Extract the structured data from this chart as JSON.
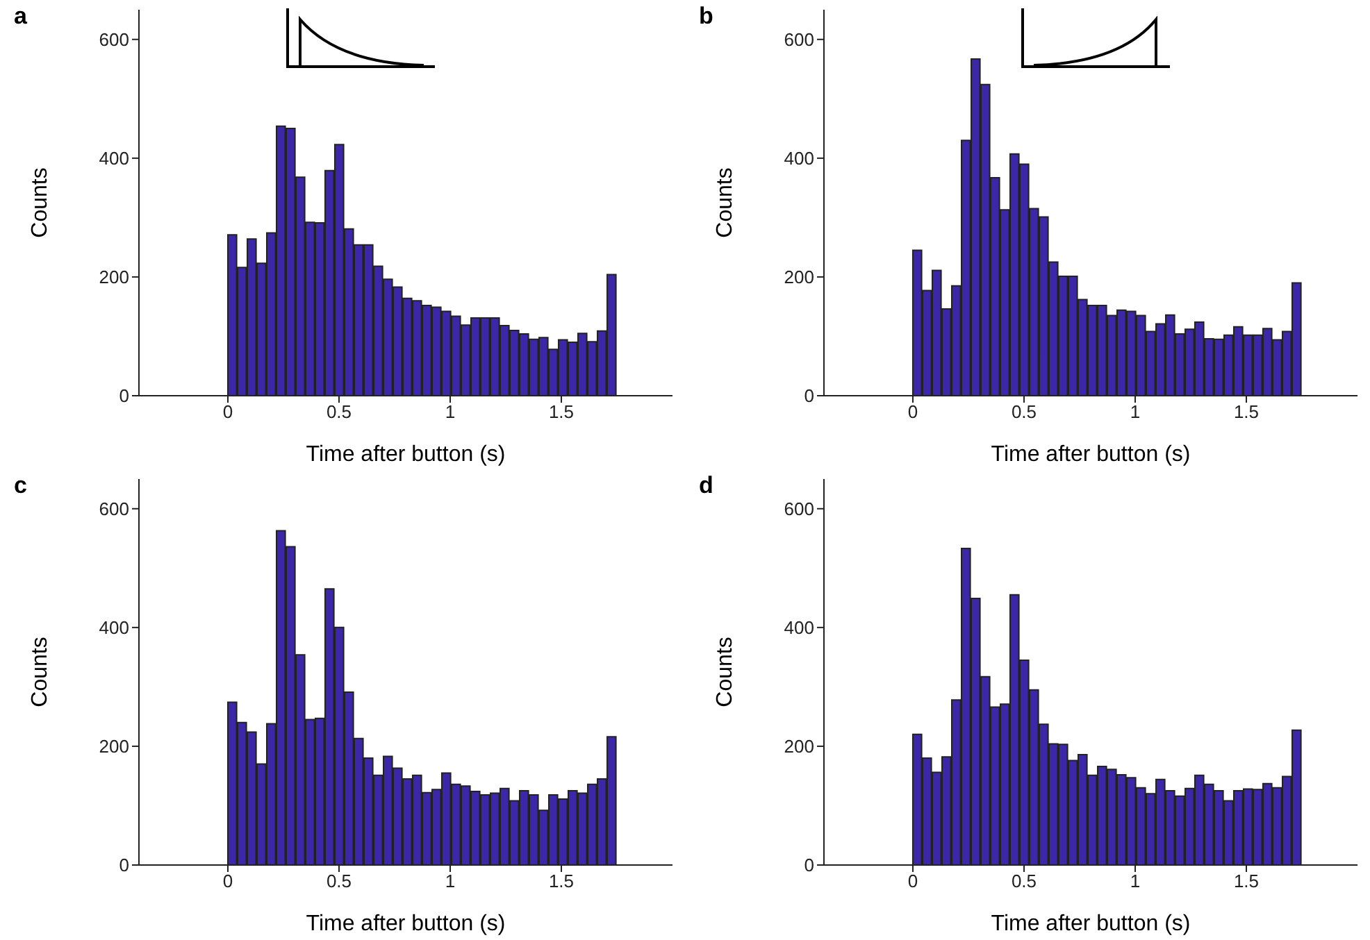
{
  "chart_data": [
    {
      "type": "histogram",
      "title": "a",
      "xlabel": "Time after button (s)",
      "ylabel": "Counts",
      "color": "#3b27a8",
      "xlim": [
        -0.4,
        2
      ],
      "ylim": [
        0,
        650
      ],
      "xticks": [
        0,
        0.5,
        1,
        1.5
      ],
      "yticks": [
        0,
        200,
        400,
        600
      ],
      "bins": [
        0,
        0.04375,
        0.0875,
        0.13125,
        0.175,
        0.21875,
        0.2625,
        0.30625,
        0.35,
        0.39375,
        0.4375,
        0.48125,
        0.525,
        0.56875,
        0.6125,
        0.65625,
        0.7,
        0.74375,
        0.7875,
        0.83125,
        0.875,
        0.91875,
        0.9625,
        1.00625,
        1.05,
        1.09375,
        1.1375,
        1.18125,
        1.225,
        1.26875,
        1.3125,
        1.35625,
        1.4,
        1.44375,
        1.4875,
        1.53125,
        1.575,
        1.61875,
        1.6625,
        1.70625,
        1.75
      ],
      "values": [
        271,
        216,
        264,
        223,
        274,
        454,
        450,
        368,
        292,
        291,
        379,
        423,
        281,
        254,
        254,
        218,
        196,
        183,
        164,
        160,
        152,
        149,
        142,
        134,
        119,
        131,
        131,
        131,
        118,
        110,
        104,
        95,
        98,
        78,
        94,
        90,
        105,
        91,
        109,
        204
      ]
    },
    {
      "type": "histogram",
      "title": "b",
      "xlabel": "Time after button (s)",
      "ylabel": "Counts",
      "color": "#3b27a8",
      "xlim": [
        -0.4,
        2
      ],
      "ylim": [
        0,
        650
      ],
      "xticks": [
        0,
        0.5,
        1,
        1.5
      ],
      "yticks": [
        0,
        200,
        400,
        600
      ],
      "bins": [
        0,
        0.04375,
        0.0875,
        0.13125,
        0.175,
        0.21875,
        0.2625,
        0.30625,
        0.35,
        0.39375,
        0.4375,
        0.48125,
        0.525,
        0.56875,
        0.6125,
        0.65625,
        0.7,
        0.74375,
        0.7875,
        0.83125,
        0.875,
        0.91875,
        0.9625,
        1.00625,
        1.05,
        1.09375,
        1.1375,
        1.18125,
        1.225,
        1.26875,
        1.3125,
        1.35625,
        1.4,
        1.44375,
        1.4875,
        1.53125,
        1.575,
        1.61875,
        1.6625,
        1.70625,
        1.75
      ],
      "values": [
        245,
        177,
        211,
        146,
        185,
        430,
        567,
        524,
        367,
        313,
        407,
        390,
        315,
        301,
        225,
        201,
        201,
        162,
        152,
        152,
        135,
        144,
        142,
        135,
        108,
        121,
        136,
        104,
        112,
        124,
        96,
        95,
        102,
        116,
        102,
        102,
        113,
        94,
        108,
        190
      ]
    },
    {
      "type": "histogram",
      "title": "c",
      "xlabel": "Time after button (s)",
      "ylabel": "Counts",
      "color": "#3b27a8",
      "xlim": [
        -0.4,
        2
      ],
      "ylim": [
        0,
        650
      ],
      "xticks": [
        0,
        0.5,
        1,
        1.5
      ],
      "yticks": [
        0,
        200,
        400,
        600
      ],
      "bins": [
        0,
        0.04375,
        0.0875,
        0.13125,
        0.175,
        0.21875,
        0.2625,
        0.30625,
        0.35,
        0.39375,
        0.4375,
        0.48125,
        0.525,
        0.56875,
        0.6125,
        0.65625,
        0.7,
        0.74375,
        0.7875,
        0.83125,
        0.875,
        0.91875,
        0.9625,
        1.00625,
        1.05,
        1.09375,
        1.1375,
        1.18125,
        1.225,
        1.26875,
        1.3125,
        1.35625,
        1.4,
        1.44375,
        1.4875,
        1.53125,
        1.575,
        1.61875,
        1.6625,
        1.70625,
        1.75
      ],
      "values": [
        274,
        240,
        224,
        170,
        238,
        563,
        536,
        354,
        245,
        247,
        465,
        400,
        291,
        213,
        180,
        151,
        183,
        163,
        145,
        151,
        122,
        127,
        155,
        136,
        133,
        124,
        118,
        121,
        129,
        108,
        125,
        118,
        92,
        118,
        111,
        125,
        121,
        136,
        145,
        216
      ]
    },
    {
      "type": "histogram",
      "title": "d",
      "xlabel": "Time after button (s)",
      "ylabel": "Counts",
      "color": "#3b27a8",
      "xlim": [
        -0.4,
        2
      ],
      "ylim": [
        0,
        650
      ],
      "xticks": [
        0,
        0.5,
        1,
        1.5
      ],
      "yticks": [
        0,
        200,
        400,
        600
      ],
      "bins": [
        0,
        0.04375,
        0.0875,
        0.13125,
        0.175,
        0.21875,
        0.2625,
        0.30625,
        0.35,
        0.39375,
        0.4375,
        0.48125,
        0.525,
        0.56875,
        0.6125,
        0.65625,
        0.7,
        0.74375,
        0.7875,
        0.83125,
        0.875,
        0.91875,
        0.9625,
        1.00625,
        1.05,
        1.09375,
        1.1375,
        1.18125,
        1.225,
        1.26875,
        1.3125,
        1.35625,
        1.4,
        1.44375,
        1.4875,
        1.53125,
        1.575,
        1.61875,
        1.6625,
        1.70625,
        1.75
      ],
      "values": [
        220,
        180,
        156,
        182,
        278,
        533,
        449,
        317,
        266,
        271,
        455,
        345,
        295,
        237,
        204,
        203,
        176,
        186,
        151,
        166,
        161,
        152,
        147,
        130,
        120,
        144,
        125,
        116,
        129,
        151,
        136,
        125,
        108,
        125,
        128,
        127,
        137,
        130,
        149,
        227
      ]
    }
  ]
}
